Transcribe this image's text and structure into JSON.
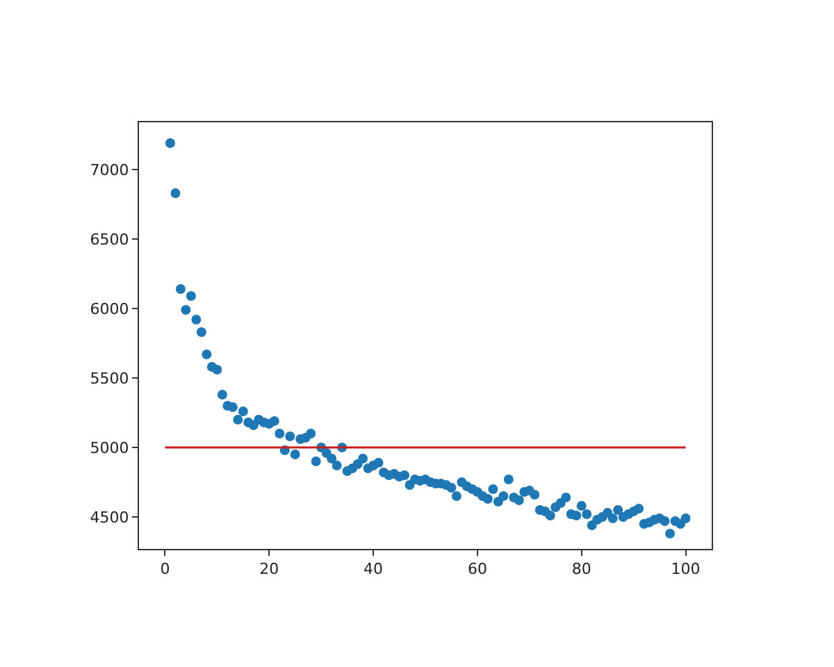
{
  "chart_data": {
    "type": "scatter",
    "xlim": [
      -5,
      105
    ],
    "ylim": [
      4270,
      7340
    ],
    "xticks": [
      0,
      20,
      40,
      60,
      80,
      100
    ],
    "yticks": [
      4500,
      5000,
      5500,
      6000,
      6500,
      7000
    ],
    "series": [
      {
        "marker": "circle",
        "color": "#1f77b4",
        "x": [
          1,
          2,
          3,
          4,
          5,
          6,
          7,
          8,
          9,
          10,
          11,
          12,
          13,
          14,
          15,
          16,
          17,
          18,
          19,
          20,
          21,
          22,
          23,
          24,
          25,
          26,
          27,
          28,
          29,
          30,
          31,
          32,
          33,
          34,
          35,
          36,
          37,
          38,
          39,
          40,
          41,
          42,
          43,
          44,
          45,
          46,
          47,
          48,
          49,
          50,
          51,
          52,
          53,
          54,
          55,
          56,
          57,
          58,
          59,
          60,
          61,
          62,
          63,
          64,
          65,
          66,
          67,
          68,
          69,
          70,
          71,
          72,
          73,
          74,
          75,
          76,
          77,
          78,
          79,
          80,
          81,
          82,
          83,
          84,
          85,
          86,
          87,
          88,
          89,
          90,
          91,
          92,
          93,
          94,
          95,
          96,
          97,
          98,
          99,
          100
        ],
        "values": [
          7190,
          6830,
          6140,
          5990,
          6090,
          5920,
          5830,
          5670,
          5580,
          5560,
          5380,
          5300,
          5290,
          5200,
          5260,
          5180,
          5160,
          5200,
          5180,
          5170,
          5190,
          5100,
          4980,
          5080,
          4950,
          5060,
          5070,
          5100,
          4900,
          5000,
          4960,
          4920,
          4870,
          5000,
          4830,
          4850,
          4880,
          4920,
          4850,
          4870,
          4890,
          4820,
          4800,
          4810,
          4790,
          4800,
          4730,
          4770,
          4760,
          4770,
          4750,
          4740,
          4740,
          4730,
          4710,
          4650,
          4750,
          4720,
          4700,
          4680,
          4650,
          4630,
          4700,
          4610,
          4650,
          4770,
          4640,
          4620,
          4680,
          4690,
          4660,
          4550,
          4540,
          4510,
          4570,
          4600,
          4640,
          4520,
          4510,
          4580,
          4520,
          4440,
          4480,
          4500,
          4530,
          4490,
          4550,
          4500,
          4520,
          4540,
          4560,
          4450,
          4460,
          4480,
          4490,
          4470,
          4380,
          4470,
          4450,
          4490
        ]
      },
      {
        "type": "line",
        "marker": "none",
        "color": "#c81e1e",
        "line_style": "solid",
        "x": [
          0,
          100
        ],
        "values": [
          5000,
          5000
        ]
      }
    ]
  }
}
